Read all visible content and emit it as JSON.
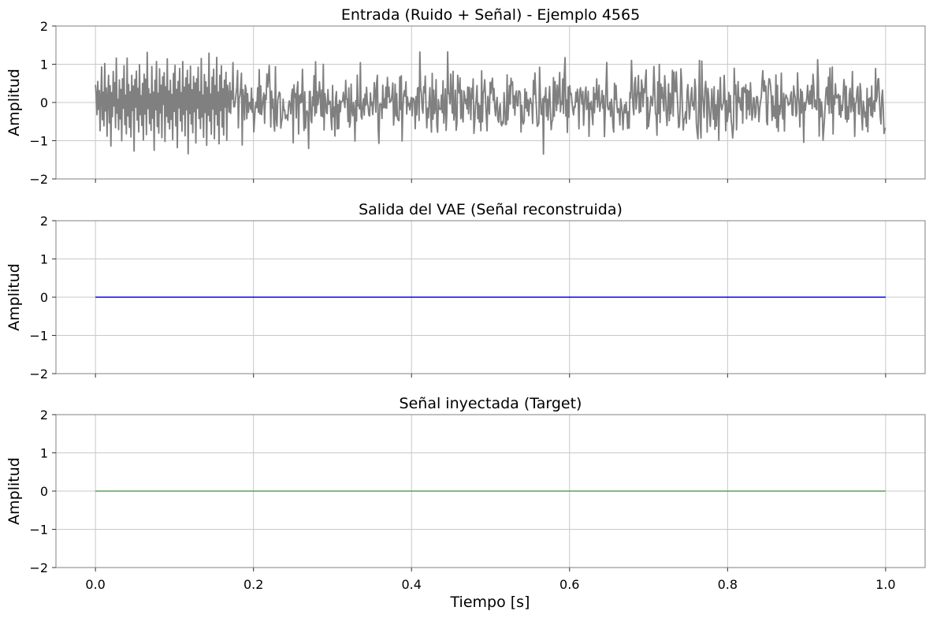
{
  "figure": {
    "xlabel": "Tiempo [s]"
  },
  "chart_data": [
    {
      "type": "line",
      "title": "Entrada (Ruido + Señal) - Ejemplo 4565",
      "xlabel": "",
      "ylabel": "Amplitud",
      "xlim": [
        -0.05,
        1.05
      ],
      "ylim": [
        -2,
        2
      ],
      "xticks": [
        0.0,
        0.2,
        0.4,
        0.6,
        0.8,
        1.0
      ],
      "xtick_labels_visible": false,
      "yticks": [
        -2,
        -1,
        0,
        1,
        2
      ],
      "ytick_labels": [
        "−2",
        "−1",
        "0",
        "1",
        "2"
      ],
      "grid": true,
      "color": "#808080",
      "series": [
        {
          "x_start": 0.0,
          "x_end": 1.0,
          "n_points": 1024,
          "description_values": "noise, std≈0.4, range approx -1.35 to 1.32",
          "values": [
            0.46,
            0.21,
            -0.32,
            0.55,
            -0.18,
            0.31,
            -0.74,
            0.12,
            0.93,
            -0.45,
            0.27,
            -0.61,
            1.02,
            -0.22,
            0.38,
            -0.88,
            0.15,
            0.71,
            -0.53,
            0.44,
            -1.14,
            0.26,
            -0.37,
            0.81,
            -0.09,
            0.52,
            -0.66,
            1.16,
            -0.28,
            0.08,
            -0.71,
            0.59,
            -0.43,
            0.34,
            -1.0,
            0.62,
            -0.15,
            0.96,
            -0.58,
            0.19,
            -0.82,
            1.16,
            -0.35,
            0.47,
            -0.65,
            0.28,
            -0.9,
            0.71,
            -0.21,
            0.43,
            -1.27,
            0.6,
            -0.12,
            0.82,
            -0.46,
            0.37,
            -0.77,
            0.99,
            -0.32,
            0.18,
            -0.6,
            0.5,
            -0.98,
            0.74,
            -0.3,
            0.61,
            -0.84,
            1.31,
            -0.16,
            0.36,
            -0.55,
            0.22,
            -0.73,
            0.94,
            -0.41,
            0.27,
            -1.25,
            0.58,
            -0.19,
            1.07,
            -0.63,
            0.24,
            -0.8,
            0.88,
            -0.27,
            0.45,
            -0.92,
            0.67,
            -0.05,
            0.78,
            -1.02,
            0.41,
            -0.36,
            1.14,
            -0.52,
            0.3,
            -0.69,
            0.58,
            -0.44,
            0.21,
            -0.97,
            0.76,
            -0.23,
            0.97,
            -0.61,
            0.34,
            -1.18,
            0.55,
            -0.14,
            0.89,
            -0.48,
            0.26,
            -0.75,
            1.07,
            -0.31,
            0.4,
            -0.87,
            0.64,
            -0.19,
            0.84,
            -1.34,
            0.47,
            -0.29,
            0.95,
            -0.56,
            0.33,
            -0.79,
            0.68,
            -0.24,
            0.51,
            -1.06,
            0.62,
            -0.15,
            0.92,
            -0.42,
            0.28,
            -0.68,
            1.15,
            -0.38,
            0.19,
            -0.91,
            0.73,
            -0.26,
            0.54,
            -1.12,
            0.39,
            -0.33,
            1.29,
            -0.49,
            0.22,
            -0.83,
            0.66,
            -0.17,
            0.87,
            -0.95,
            0.44,
            -0.31,
            1.18,
            -0.59,
            0.27,
            -1.08,
            0.71,
            -0.21,
            0.96,
            -0.64,
            0.36,
            -0.85,
            0.58,
            -0.12,
            0.79,
            -0.99,
            0.45
          ]
        }
      ]
    },
    {
      "type": "line",
      "title": "Salida del VAE (Señal reconstruida)",
      "xlabel": "",
      "ylabel": "Amplitud",
      "xlim": [
        -0.05,
        1.05
      ],
      "ylim": [
        -2,
        2
      ],
      "xticks": [
        0.0,
        0.2,
        0.4,
        0.6,
        0.8,
        1.0
      ],
      "xtick_labels_visible": false,
      "yticks": [
        -2,
        -1,
        0,
        1,
        2
      ],
      "ytick_labels": [
        "−2",
        "−1",
        "0",
        "1",
        "2"
      ],
      "grid": true,
      "color": "#0000ff",
      "series": [
        {
          "x": [
            0.0,
            1.0
          ],
          "values": [
            0.0,
            0.0
          ]
        }
      ]
    },
    {
      "type": "line",
      "title": "Señal inyectada (Target)",
      "xlabel": "Tiempo [s]",
      "ylabel": "Amplitud",
      "xlim": [
        -0.05,
        1.05
      ],
      "ylim": [
        -2,
        2
      ],
      "xticks": [
        0.0,
        0.2,
        0.4,
        0.6,
        0.8,
        1.0
      ],
      "xtick_labels": [
        "0.0",
        "0.2",
        "0.4",
        "0.6",
        "0.8",
        "1.0"
      ],
      "xtick_labels_visible": true,
      "yticks": [
        -2,
        -1,
        0,
        1,
        2
      ],
      "ytick_labels": [
        "−2",
        "−1",
        "0",
        "1",
        "2"
      ],
      "grid": true,
      "color": "#5aa05a",
      "series": [
        {
          "x": [
            0.0,
            1.0
          ],
          "values": [
            0.0,
            0.0
          ]
        }
      ]
    }
  ]
}
